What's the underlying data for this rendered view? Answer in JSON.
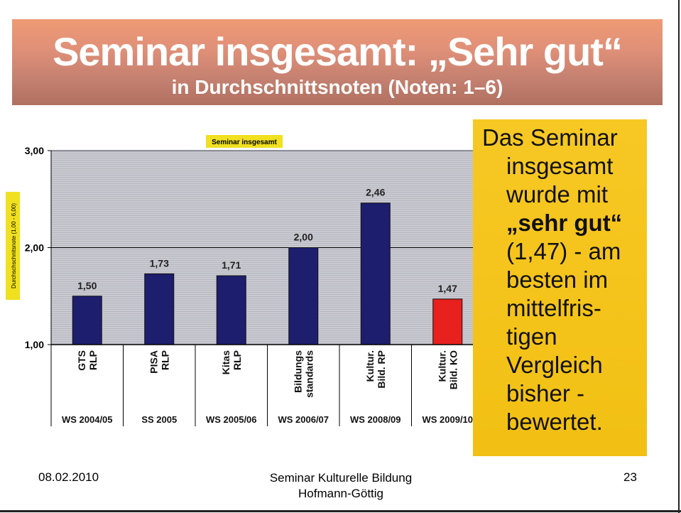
{
  "slide": {
    "title": "Seminar insgesamt: „Sehr gut“",
    "subtitle": "in Durchschnittsnoten (Noten: 1–6)",
    "callout_lines": [
      "Das Seminar",
      "insgesamt",
      "wurde mit",
      "„sehr gut“",
      "(1,47) - am",
      "besten im",
      "mittelfris-",
      "tigen",
      "Vergleich",
      "bisher -",
      "bewertet."
    ],
    "callout_bold_line_index": 3,
    "footer": {
      "date": "08.02.2010",
      "center_line1": "Seminar Kulturelle Bildung",
      "center_line2": "Hofmann-Göttig",
      "page": "23"
    }
  },
  "colors": {
    "bar_default": "#1e1e6e",
    "bar_highlight": "#e8201e",
    "plot_bg": "#c8c8cc",
    "label_highlight": "#f0e020",
    "callout_bg": "#f5c518"
  },
  "chart_data": {
    "type": "bar",
    "title": "Seminar insgesamt",
    "ylabel": "Durchschschnitsnote (1,00 - 6,00)",
    "xlabel": "",
    "ylim": [
      1.0,
      3.0
    ],
    "yticks": [
      "1,00",
      "2,00",
      "3,00"
    ],
    "ytick_values": [
      1,
      2,
      3
    ],
    "grid": true,
    "categories": [
      {
        "lines": [
          "GTS",
          "RLP"
        ],
        "term": "WS 2004/05"
      },
      {
        "lines": [
          "PISA",
          "RLP"
        ],
        "term": "SS 2005"
      },
      {
        "lines": [
          "Kitas",
          "RLP"
        ],
        "term": "WS 2005/06"
      },
      {
        "lines": [
          "Bildungs",
          "standards"
        ],
        "term": "WS 2006/07"
      },
      {
        "lines": [
          "Kultur.",
          "Bild. RP"
        ],
        "term": "WS 2008/09"
      },
      {
        "lines": [
          "Kultur.",
          "Bild. KO"
        ],
        "term": "WS 2009/10"
      }
    ],
    "values": [
      1.5,
      1.73,
      1.71,
      2.0,
      2.46,
      1.47
    ],
    "value_labels": [
      "1,50",
      "1,73",
      "1,71",
      "2,00",
      "2,46",
      "1,47"
    ],
    "highlight_index": 5
  }
}
